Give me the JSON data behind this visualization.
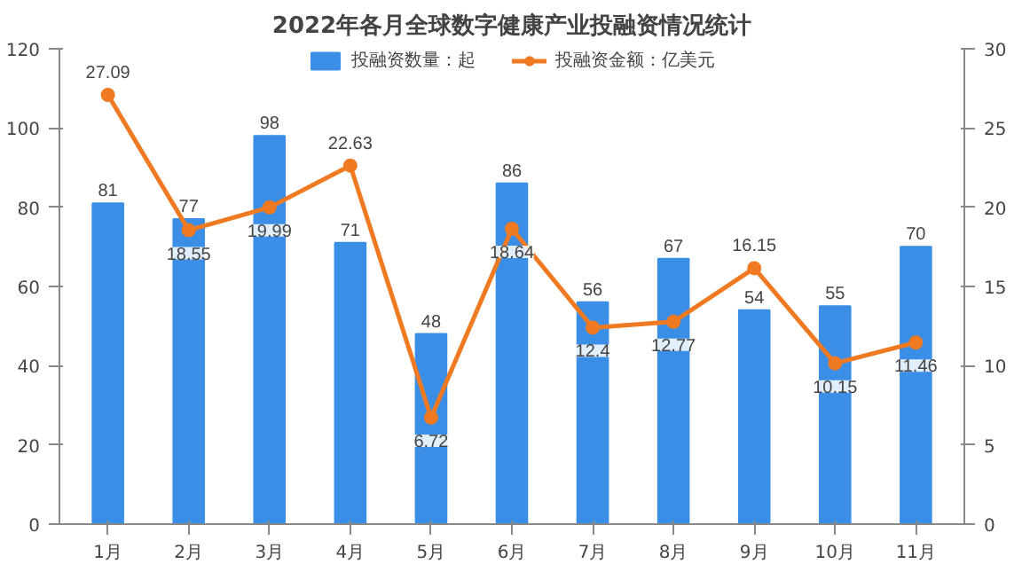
{
  "chart_data": {
    "type": "bar",
    "title": "2022年各月全球数字健康产业投融资情况统计",
    "categories": [
      "1月",
      "2月",
      "3月",
      "4月",
      "5月",
      "6月",
      "7月",
      "8月",
      "9月",
      "10月",
      "11月"
    ],
    "series": [
      {
        "name": "投融资数量：起",
        "color": "#3a8ee6",
        "values": [
          81,
          77,
          98,
          71,
          48,
          86,
          56,
          67,
          54,
          55,
          70
        ]
      },
      {
        "name": "投融资金额：亿美元",
        "type": "line",
        "axis": "y2",
        "color": "#f07a22",
        "values": [
          27.09,
          18.55,
          19.99,
          22.63,
          6.72,
          18.64,
          12.4,
          12.77,
          16.15,
          10.15,
          11.46
        ]
      }
    ],
    "ylim": [
      0,
      120
    ],
    "yticks": [
      0,
      20,
      40,
      60,
      80,
      100,
      120
    ],
    "y2lim": [
      0,
      30
    ],
    "y2ticks": [
      0,
      5,
      10,
      15,
      20,
      25,
      30
    ],
    "data_labels": true,
    "legend": "top",
    "marker": "circle",
    "line_style": "solid",
    "grid": false
  }
}
